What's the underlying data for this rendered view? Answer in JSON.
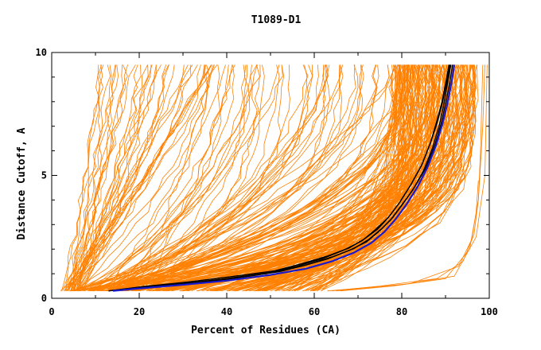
{
  "chart_data": {
    "type": "line",
    "title": "T1089-D1",
    "xlabel": "Percent of Residues (CA)",
    "ylabel": "Distance Cutoff, A",
    "xlim": [
      0,
      100
    ],
    "ylim": [
      0,
      10
    ],
    "x_ticks": [
      0,
      20,
      40,
      60,
      80,
      100
    ],
    "y_ticks": [
      0,
      5,
      10
    ],
    "grid": false,
    "legend": "none",
    "colors": {
      "orange": "#ff8000",
      "black": "#000000",
      "blue": "#1a1acc"
    },
    "series_groups": {
      "highlight_black": [
        {
          "x": [
            13,
            20,
            30,
            40,
            50,
            57,
            63,
            68,
            72,
            75,
            77.5,
            80,
            82.5,
            85,
            87,
            88.5,
            89.5,
            90.5,
            91.2
          ],
          "y": [
            0.3,
            0.45,
            0.6,
            0.8,
            1.05,
            1.3,
            1.6,
            1.95,
            2.3,
            2.75,
            3.2,
            3.8,
            4.4,
            5.2,
            6.1,
            7.0,
            7.8,
            8.8,
            9.5
          ]
        },
        {
          "x": [
            14,
            20,
            30,
            40,
            50,
            56,
            62,
            67,
            71,
            74,
            77,
            79.5,
            82,
            84.5,
            86.5,
            88,
            89.2,
            90.2,
            90.8
          ],
          "y": [
            0.3,
            0.42,
            0.58,
            0.8,
            1.05,
            1.3,
            1.62,
            1.98,
            2.35,
            2.8,
            3.3,
            3.9,
            4.6,
            5.4,
            6.3,
            7.2,
            8.0,
            8.9,
            9.5
          ]
        },
        {
          "x": [
            14,
            22,
            32,
            42,
            52,
            58,
            64,
            69,
            72.5,
            75.5,
            78,
            80.5,
            83,
            85.5,
            87.5,
            89,
            90,
            91,
            91.6
          ],
          "y": [
            0.3,
            0.45,
            0.6,
            0.82,
            1.08,
            1.35,
            1.68,
            2.02,
            2.4,
            2.85,
            3.3,
            3.9,
            4.55,
            5.3,
            6.2,
            7.1,
            7.9,
            8.8,
            9.5
          ]
        },
        {
          "x": [
            13,
            21,
            31,
            41,
            51,
            57,
            63,
            68,
            71.5,
            74.5,
            77,
            79.5,
            82,
            84.5,
            86.5,
            88,
            89.2,
            90.3,
            91
          ],
          "y": [
            0.3,
            0.48,
            0.66,
            0.88,
            1.12,
            1.4,
            1.72,
            2.05,
            2.42,
            2.82,
            3.3,
            3.9,
            4.6,
            5.4,
            6.3,
            7.1,
            7.9,
            8.8,
            9.5
          ]
        }
      ],
      "highlight_blue": [
        {
          "x": [
            14,
            20,
            30,
            40,
            50,
            58,
            64,
            69,
            73,
            76,
            78.5,
            81,
            83.5,
            85.8,
            87.8,
            89.3,
            90.4,
            91.4,
            92
          ],
          "y": [
            0.3,
            0.4,
            0.55,
            0.72,
            0.95,
            1.2,
            1.5,
            1.85,
            2.25,
            2.7,
            3.2,
            3.8,
            4.5,
            5.3,
            6.2,
            7.1,
            7.9,
            8.8,
            9.5
          ]
        }
      ]
    }
  }
}
